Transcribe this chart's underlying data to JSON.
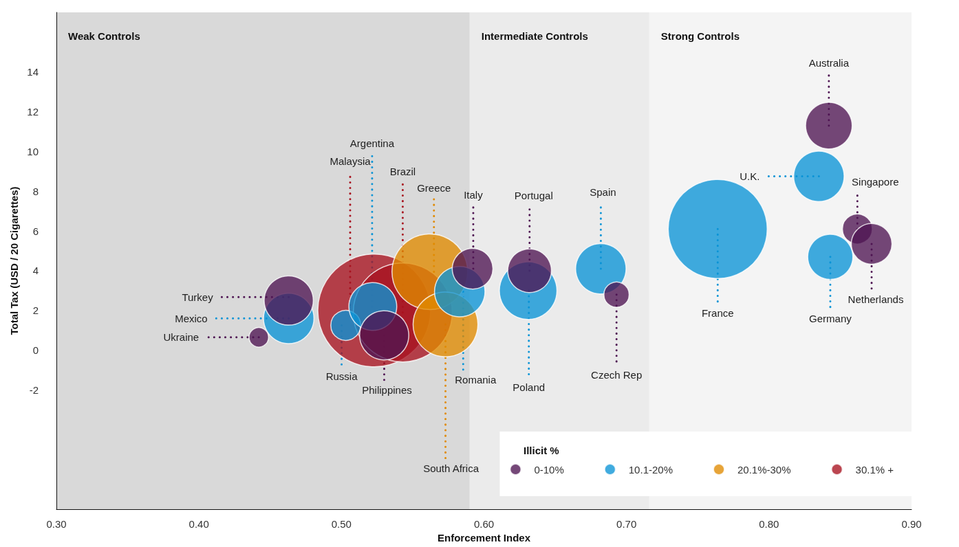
{
  "chart_data": {
    "type": "bubble",
    "xlabel": "Enforcement Index",
    "ylabel": "Total Tax (USD / 20 Cigarettes)",
    "legend_title": "Illicit %",
    "legend": "bottom right",
    "grid": false,
    "marker": "circle",
    "xlim": [
      0.3,
      0.9
    ],
    "xticks": [
      {
        "value": 0.3,
        "label": "0.30"
      },
      {
        "value": 0.4,
        "label": "0.40"
      },
      {
        "value": 0.5,
        "label": "0.50"
      },
      {
        "value": 0.6,
        "label": "0.60"
      },
      {
        "value": 0.7,
        "label": "0.70"
      },
      {
        "value": 0.8,
        "label": "0.80"
      },
      {
        "value": 0.9,
        "label": "0.90"
      }
    ],
    "ylim": [
      -8,
      17
    ],
    "yticks": [
      -2,
      0,
      2,
      4,
      6,
      8,
      10,
      12,
      14
    ],
    "bands": [
      {
        "axis": "x",
        "from": 0.3,
        "to": 0.59,
        "label": "Weak Controls",
        "color": "#d9d9d9"
      },
      {
        "axis": "x",
        "from": 0.59,
        "to": 0.716,
        "label": "Intermediate Controls",
        "color": "#ebebeb"
      },
      {
        "axis": "x",
        "from": 0.716,
        "to": 0.9,
        "label": "Strong Controls",
        "color": "#f4f4f4"
      }
    ],
    "series": [
      {
        "name": "0-10%",
        "color": "#4e1452",
        "x": [
          0.442,
          0.463,
          0.53,
          0.592,
          0.632,
          0.693,
          0.842,
          0.862,
          0.872
        ],
        "values": [
          0.65,
          2.5,
          0.75,
          4.1,
          4.0,
          2.8,
          11.3,
          6.1,
          5.35
        ],
        "sizes": [
          0.03,
          0.19,
          0.19,
          0.13,
          0.15,
          0.05,
          0.17,
          0.07,
          0.13
        ]
      },
      {
        "name": "10.1-20%",
        "color": "#0a94d6",
        "x": [
          0.463,
          0.503,
          0.522,
          0.583,
          0.631,
          0.682,
          0.764,
          0.835,
          0.843
        ],
        "values": [
          1.6,
          1.25,
          2.2,
          2.95,
          3.0,
          4.1,
          6.1,
          8.75,
          4.7
        ],
        "sizes": [
          0.2,
          0.07,
          0.18,
          0.2,
          0.26,
          0.2,
          0.77,
          0.2,
          0.16
        ]
      },
      {
        "name": "20.1%-30%",
        "color": "#e08a00",
        "x": [
          0.562,
          0.573
        ],
        "values": [
          3.95,
          1.3
        ],
        "sizes": [
          0.45,
          0.33
        ]
      },
      {
        "name": "30.1% +",
        "color": "#a8121f",
        "x": [
          0.523,
          0.543
        ],
        "values": [
          2.0,
          1.9
        ],
        "sizes": [
          1,
          0.77
        ]
      }
    ],
    "annotations": [
      {
        "text": "Ukraine",
        "x": 0.442,
        "y": 0.65
      },
      {
        "text": "Mexico",
        "x": 0.463,
        "y": 1.6
      },
      {
        "text": "Turkey",
        "x": 0.463,
        "y": 2.5
      },
      {
        "text": "Russia",
        "x": 0.503,
        "y": 1.25
      },
      {
        "text": "Malaysia",
        "x": 0.523,
        "y": 2.0
      },
      {
        "text": "Argentina",
        "x": 0.522,
        "y": 2.2
      },
      {
        "text": "Brazil",
        "x": 0.543,
        "y": 1.9
      },
      {
        "text": "Greece",
        "x": 0.562,
        "y": 3.95
      },
      {
        "text": "South Africa",
        "x": 0.573,
        "y": 1.3
      },
      {
        "text": "Romania",
        "x": 0.583,
        "y": 2.95
      },
      {
        "text": "Italy",
        "x": 0.592,
        "y": 4.1
      },
      {
        "text": "Philippines",
        "x": 0.53,
        "y": 0.75
      },
      {
        "text": "Poland",
        "x": 0.631,
        "y": 3.0
      },
      {
        "text": "Portugal",
        "x": 0.632,
        "y": 4.0
      },
      {
        "text": "Spain",
        "x": 0.682,
        "y": 4.1
      },
      {
        "text": "Czech Rep",
        "x": 0.693,
        "y": 2.8
      },
      {
        "text": "France",
        "x": 0.764,
        "y": 6.1
      },
      {
        "text": "Australia",
        "x": 0.842,
        "y": 11.3
      },
      {
        "text": "U.K.",
        "x": 0.835,
        "y": 8.75
      },
      {
        "text": "Singapore",
        "x": 0.862,
        "y": 6.1
      },
      {
        "text": "Netherlands",
        "x": 0.872,
        "y": 5.35
      },
      {
        "text": "Germany",
        "x": 0.843,
        "y": 4.7
      }
    ]
  }
}
